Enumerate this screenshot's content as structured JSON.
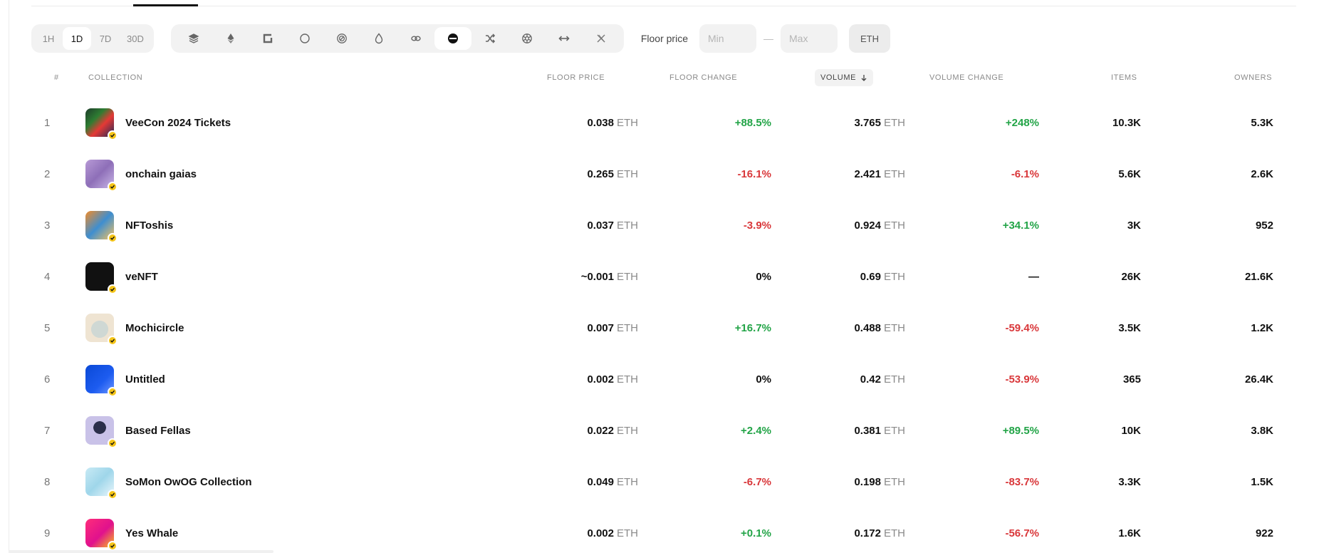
{
  "time_filters": [
    {
      "label": "1H",
      "active": false
    },
    {
      "label": "1D",
      "active": true
    },
    {
      "label": "7D",
      "active": false
    },
    {
      "label": "30D",
      "active": false
    }
  ],
  "chains": [
    {
      "icon": "layers-icon",
      "active": false
    },
    {
      "icon": "ethereum-icon",
      "active": false
    },
    {
      "icon": "apechain-icon",
      "active": false
    },
    {
      "icon": "circle-icon",
      "active": false
    },
    {
      "icon": "target-icon",
      "active": false
    },
    {
      "icon": "drop-icon",
      "active": false
    },
    {
      "icon": "link-icon",
      "active": false
    },
    {
      "icon": "base-icon",
      "active": true
    },
    {
      "icon": "shuffle-icon",
      "active": false
    },
    {
      "icon": "aperture-icon",
      "active": false
    },
    {
      "icon": "arrows-icon",
      "active": false
    },
    {
      "icon": "x-chain-icon",
      "active": false
    }
  ],
  "floor_filter": {
    "label": "Floor price",
    "min_placeholder": "Min",
    "max_placeholder": "Max",
    "separator": "—",
    "currency": "ETH"
  },
  "columns": {
    "rank": "#",
    "collection": "COLLECTION",
    "floor_price": "FLOOR PRICE",
    "floor_change": "FLOOR CHANGE",
    "volume": "VOLUME",
    "volume_change": "VOLUME CHANGE",
    "items": "ITEMS",
    "owners": "OWNERS"
  },
  "colors": {
    "positive": "#22a447",
    "negative": "#d9373a",
    "badge": "#f5c518"
  },
  "rows": [
    {
      "rank": "1",
      "name": "VeeCon 2024 Tickets",
      "floor": "0.038",
      "unit": "ETH",
      "floor_change": "+88.5%",
      "fc_dir": "pos",
      "volume": "3.765",
      "volume_change": "+248%",
      "vc_dir": "pos",
      "items": "10.3K",
      "owners": "5.3K"
    },
    {
      "rank": "2",
      "name": "onchain gaias",
      "floor": "0.265",
      "unit": "ETH",
      "floor_change": "-16.1%",
      "fc_dir": "neg",
      "volume": "2.421",
      "volume_change": "-6.1%",
      "vc_dir": "neg",
      "items": "5.6K",
      "owners": "2.6K"
    },
    {
      "rank": "3",
      "name": "NFToshis",
      "floor": "0.037",
      "unit": "ETH",
      "floor_change": "-3.9%",
      "fc_dir": "neg",
      "volume": "0.924",
      "volume_change": "+34.1%",
      "vc_dir": "pos",
      "items": "3K",
      "owners": "952"
    },
    {
      "rank": "4",
      "name": "veNFT",
      "floor": "~0.001",
      "unit": "ETH",
      "floor_change": "0%",
      "fc_dir": "neu",
      "volume": "0.69",
      "volume_change": "—",
      "vc_dir": "neu",
      "items": "26K",
      "owners": "21.6K"
    },
    {
      "rank": "5",
      "name": "Mochicircle",
      "floor": "0.007",
      "unit": "ETH",
      "floor_change": "+16.7%",
      "fc_dir": "pos",
      "volume": "0.488",
      "volume_change": "-59.4%",
      "vc_dir": "neg",
      "items": "3.5K",
      "owners": "1.2K"
    },
    {
      "rank": "6",
      "name": "Untitled",
      "floor": "0.002",
      "unit": "ETH",
      "floor_change": "0%",
      "fc_dir": "neu",
      "volume": "0.42",
      "volume_change": "-53.9%",
      "vc_dir": "neg",
      "items": "365",
      "owners": "26.4K"
    },
    {
      "rank": "7",
      "name": "Based Fellas",
      "floor": "0.022",
      "unit": "ETH",
      "floor_change": "+2.4%",
      "fc_dir": "pos",
      "volume": "0.381",
      "volume_change": "+89.5%",
      "vc_dir": "pos",
      "items": "10K",
      "owners": "3.8K"
    },
    {
      "rank": "8",
      "name": "SoMon OwOG Collection",
      "floor": "0.049",
      "unit": "ETH",
      "floor_change": "-6.7%",
      "fc_dir": "neg",
      "volume": "0.198",
      "volume_change": "-83.7%",
      "vc_dir": "neg",
      "items": "3.3K",
      "owners": "1.5K"
    },
    {
      "rank": "9",
      "name": "Yes Whale",
      "floor": "0.002",
      "unit": "ETH",
      "floor_change": "+0.1%",
      "fc_dir": "pos",
      "volume": "0.172",
      "volume_change": "-56.7%",
      "vc_dir": "neg",
      "items": "1.6K",
      "owners": "922"
    }
  ]
}
